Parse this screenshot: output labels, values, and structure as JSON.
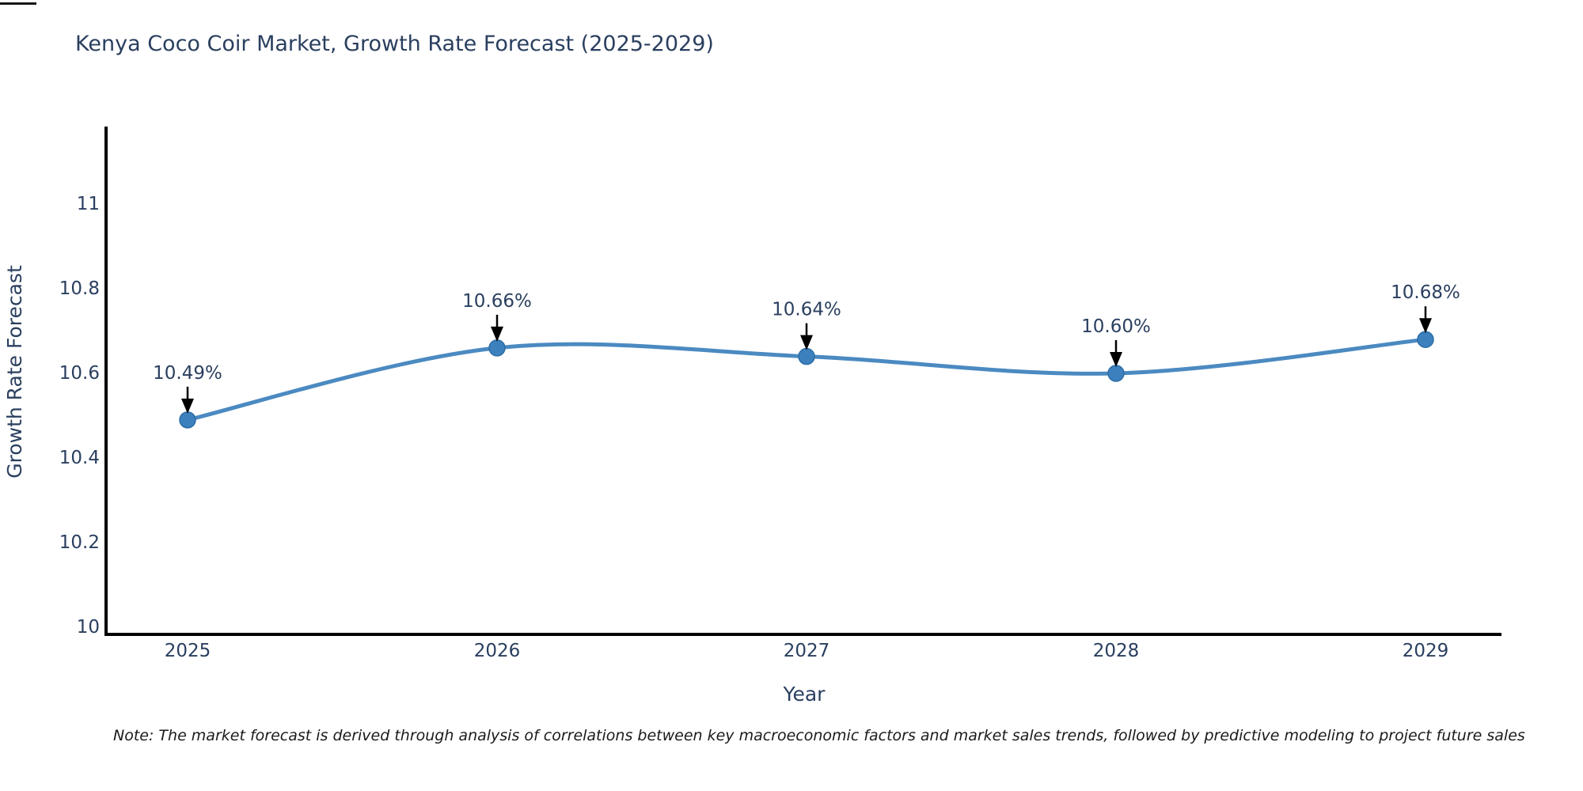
{
  "title": "Kenya Coco Coir Market, Growth Rate Forecast (2025-2029)",
  "note": "Note: The market forecast is derived through analysis of correlations between key macroeconomic factors and market sales trends, followed by predictive modeling to project future sales",
  "chart_data": {
    "type": "line",
    "title": "Kenya Coco Coir Market, Growth Rate Forecast (2025-2029)",
    "x": [
      2025,
      2026,
      2027,
      2028,
      2029
    ],
    "y": [
      10.49,
      10.66,
      10.64,
      10.6,
      10.68
    ],
    "point_labels": [
      "10.49%",
      "10.66%",
      "10.64%",
      "10.60%",
      "10.68%"
    ],
    "x_tick_labels": [
      "2025",
      "2026",
      "2027",
      "2028",
      "2029"
    ],
    "y_tick_labels": [
      "10",
      "10.2",
      "10.4",
      "10.6",
      "10.8",
      "11"
    ],
    "y_ticks": [
      10,
      10.2,
      10.4,
      10.6,
      10.8,
      11
    ],
    "xlabel": "Year",
    "ylabel": "Growth Rate Forecast",
    "ylim": [
      9.98,
      11.18
    ],
    "grid": false,
    "line_shape": "spline",
    "legend": "none",
    "colors": {
      "line": "#4b8ac1",
      "marker": "#3c80be",
      "marker_edge": "#2e6da4",
      "axis": "#000000",
      "text": "#2a3f5f",
      "annotation_arrow": "#000000"
    }
  }
}
